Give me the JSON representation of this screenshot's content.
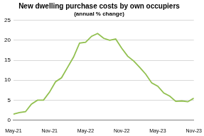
{
  "chart_data": {
    "type": "line",
    "title": "New dwelling purchase costs by own occupiers",
    "subtitle": "(annual % change)",
    "categories": [
      "May-21",
      null,
      null,
      null,
      null,
      null,
      "Nov-21",
      null,
      null,
      null,
      null,
      null,
      "May-22",
      null,
      null,
      null,
      null,
      null,
      "Nov-22",
      null,
      null,
      null,
      null,
      null,
      "May-23",
      null,
      null,
      null,
      null,
      null,
      "Nov-23"
    ],
    "values": [
      1.5,
      1.9,
      2.1,
      4.0,
      5.0,
      5.0,
      7.0,
      9.6,
      10.6,
      13.2,
      15.8,
      19.3,
      19.5,
      21.0,
      21.7,
      20.5,
      20.0,
      20.3,
      18.0,
      16.0,
      14.8,
      13.2,
      11.5,
      9.3,
      8.5,
      6.8,
      6.0,
      4.7,
      4.8,
      4.6,
      5.5
    ],
    "color": "#92c050",
    "ylim": [
      0,
      25
    ],
    "yticks": [
      0,
      5,
      10,
      15,
      20,
      25
    ],
    "grid": true
  }
}
